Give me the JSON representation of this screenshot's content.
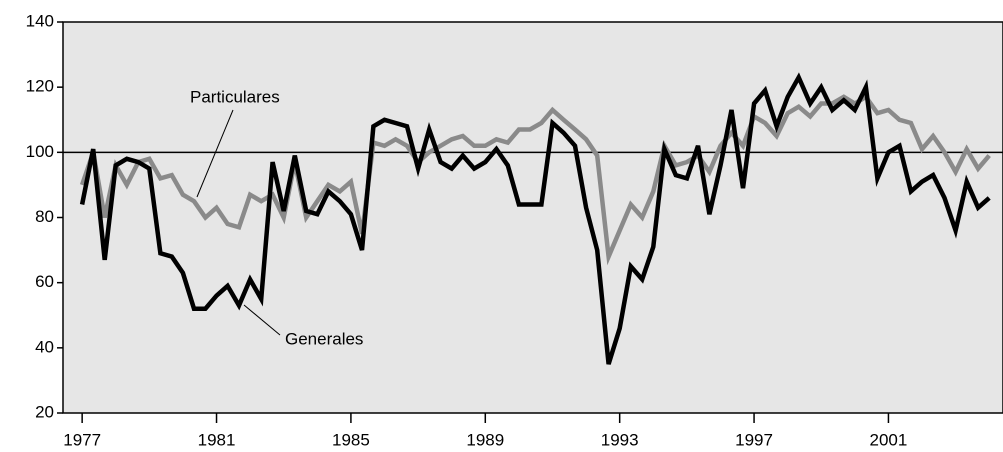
{
  "chart_data": {
    "type": "line",
    "annotations": [
      "Particulares",
      "Generales"
    ],
    "x": [
      1977,
      1977.33,
      1977.67,
      1978,
      1978.33,
      1978.67,
      1979,
      1979.33,
      1979.67,
      1980,
      1980.33,
      1980.67,
      1981,
      1981.33,
      1981.67,
      1982,
      1982.33,
      1982.67,
      1983,
      1983.33,
      1983.67,
      1984,
      1984.33,
      1984.67,
      1985,
      1985.33,
      1985.67,
      1986,
      1986.33,
      1986.67,
      1987,
      1987.33,
      1987.67,
      1988,
      1988.33,
      1988.67,
      1989,
      1989.33,
      1989.67,
      1990,
      1990.33,
      1990.67,
      1991,
      1991.33,
      1991.67,
      1992,
      1992.33,
      1992.67,
      1993,
      1993.33,
      1993.67,
      1994,
      1994.33,
      1994.67,
      1995,
      1995.33,
      1995.67,
      1996,
      1996.33,
      1996.67,
      1997,
      1997.33,
      1997.67,
      1998,
      1998.33,
      1998.67,
      1999,
      1999.33,
      1999.67,
      2000,
      2000.33,
      2000.67,
      2001,
      2001.33,
      2001.67,
      2002,
      2002.33,
      2002.67,
      2003,
      2003.33,
      2003.67,
      2004
    ],
    "series": [
      {
        "name": "Particulares",
        "color": "#8a8a8a",
        "values": [
          90,
          100,
          80,
          96,
          90,
          97,
          98,
          92,
          93,
          87,
          85,
          80,
          83,
          78,
          77,
          87,
          85,
          87,
          80,
          97,
          80,
          85,
          90,
          88,
          91,
          75,
          103,
          102,
          104,
          102,
          97,
          100,
          102,
          104,
          105,
          102,
          102,
          104,
          103,
          107,
          107,
          109,
          113,
          110,
          107,
          104,
          99,
          68,
          76,
          84,
          80,
          88,
          102,
          96,
          97,
          99,
          94,
          102,
          106,
          102,
          111,
          109,
          105,
          112,
          114,
          111,
          115,
          115,
          117,
          115,
          117,
          112,
          113,
          110,
          109,
          101,
          105,
          100,
          94,
          101,
          95,
          99
        ]
      },
      {
        "name": "Generales",
        "color": "#000000",
        "values": [
          84,
          101,
          67,
          96,
          98,
          97,
          95,
          69,
          68,
          63,
          52,
          52,
          56,
          59,
          53,
          61,
          55,
          97,
          82,
          99,
          82,
          81,
          88,
          85,
          81,
          70,
          108,
          110,
          109,
          108,
          95,
          107,
          97,
          95,
          99,
          95,
          97,
          101,
          96,
          84,
          84,
          84,
          109,
          106,
          102,
          83,
          70,
          35,
          46,
          65,
          61,
          71,
          101,
          93,
          92,
          102,
          81,
          96,
          113,
          89,
          115,
          119,
          108,
          117,
          123,
          115,
          120,
          113,
          116,
          113,
          120,
          92,
          100,
          102,
          88,
          91,
          93,
          86,
          76,
          91,
          83,
          86
        ]
      }
    ],
    "xlim": [
      1976.43,
      2004.41
    ],
    "xticks": [
      1977,
      1981,
      1985,
      1989,
      1993,
      1997,
      2001
    ],
    "ylim": [
      20,
      140
    ],
    "yticks": [
      20,
      40,
      60,
      80,
      100,
      120,
      140
    ],
    "reference_line": 100,
    "plot_background": "#e6e6e6"
  }
}
